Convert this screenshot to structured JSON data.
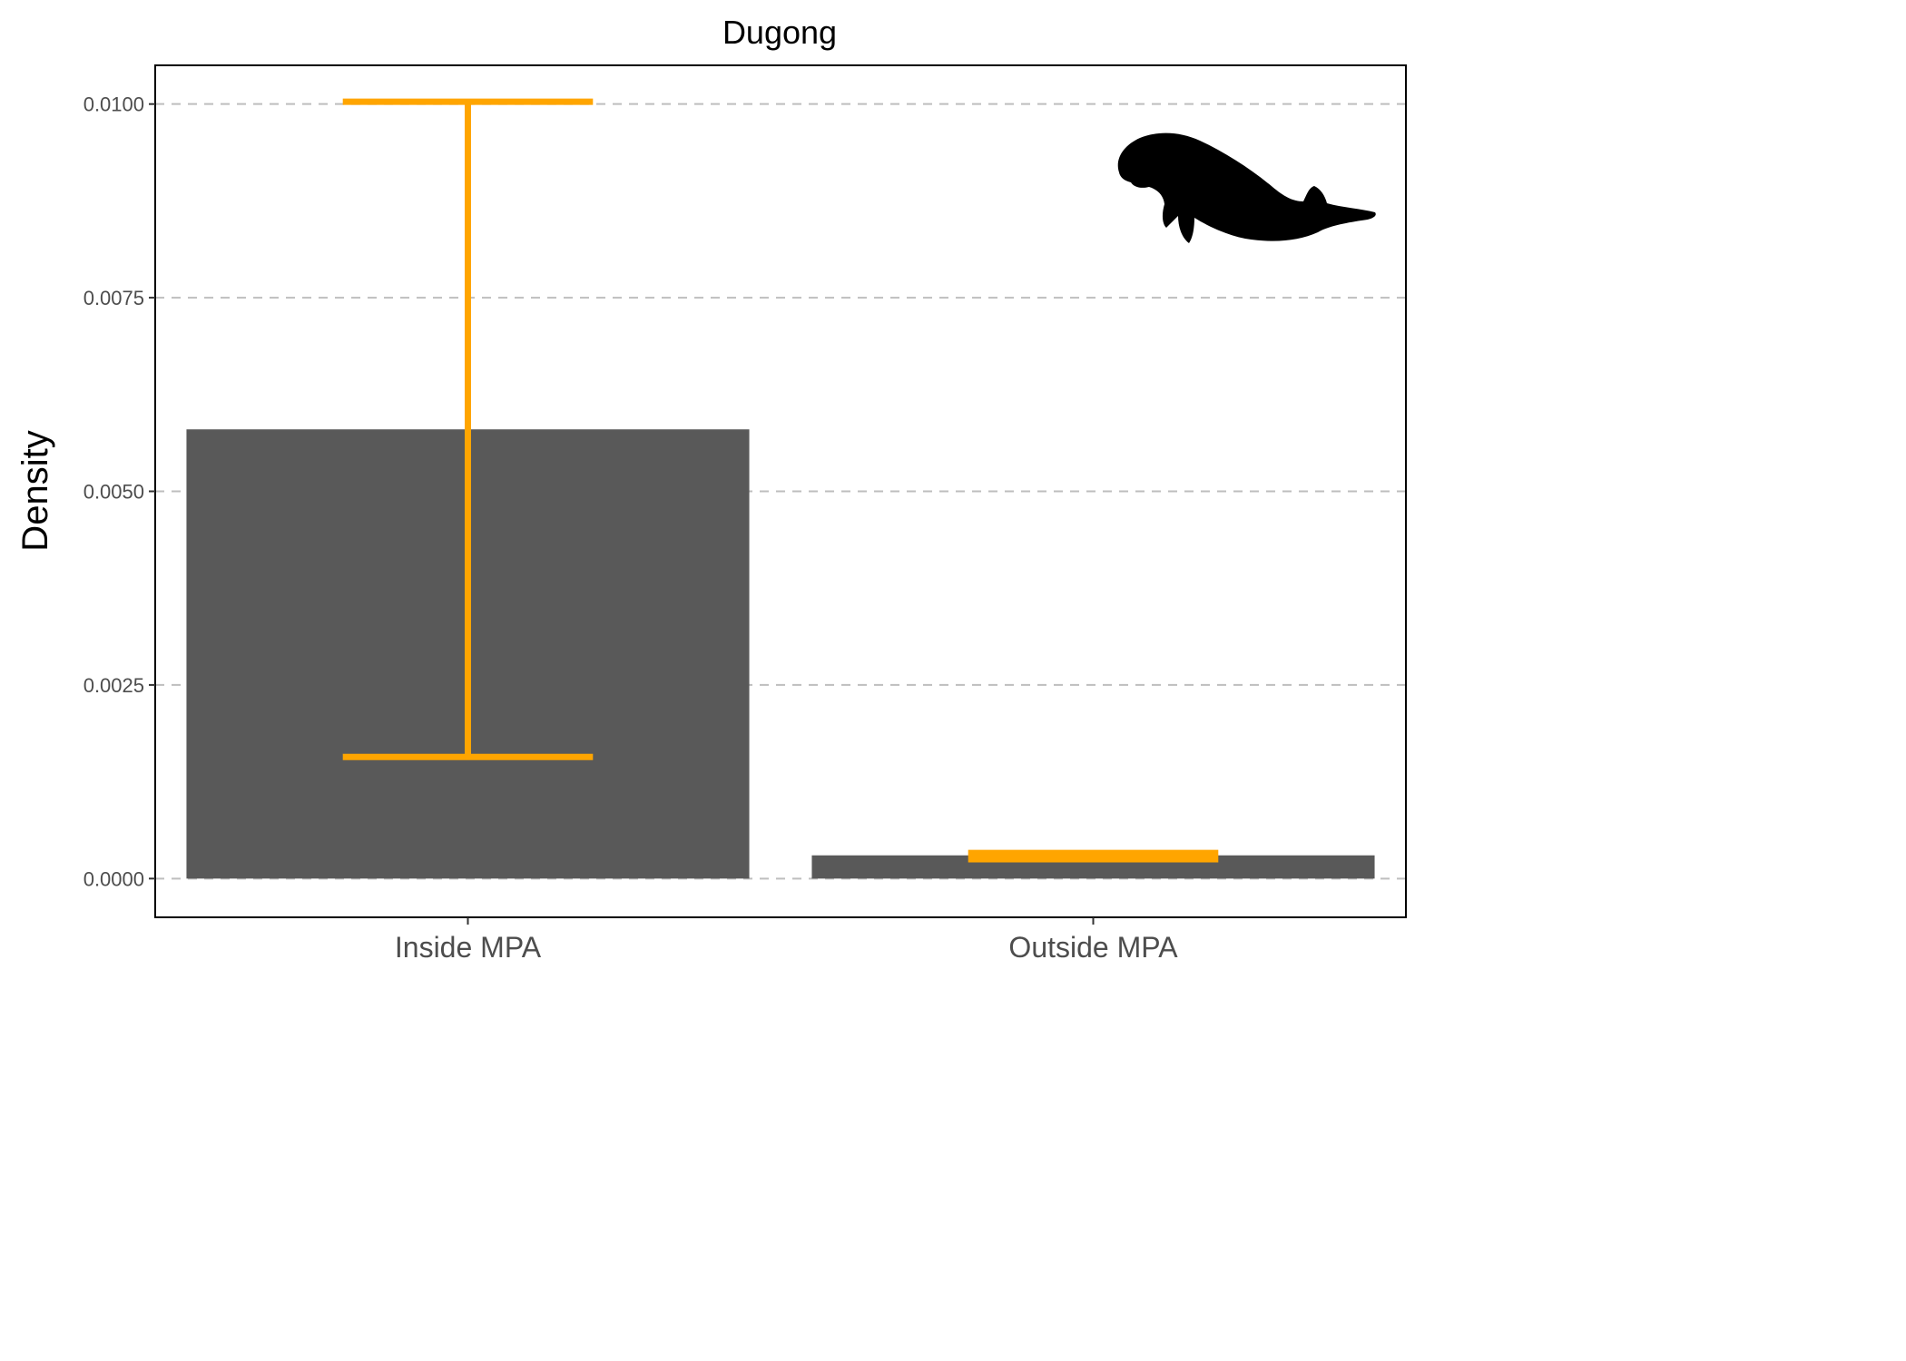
{
  "chart_data": {
    "type": "bar",
    "title": "Dugong",
    "xlabel": "",
    "ylabel": "Density",
    "categories": [
      "Inside MPA",
      "Outside MPA"
    ],
    "values": [
      0.0058,
      0.0003
    ],
    "error_bars": [
      {
        "lower": 0.00157,
        "upper": 0.01003
      },
      {
        "lower": 0.00025,
        "upper": 0.00033
      }
    ],
    "ylim": [
      -0.0005,
      0.0105
    ],
    "y_ticks": [
      "0.0000",
      "0.0025",
      "0.0050",
      "0.0075",
      "0.0100"
    ],
    "y_tick_values": [
      0,
      0.0025,
      0.005,
      0.0075,
      0.01
    ],
    "grid": "horizontal dashed",
    "legend": "none",
    "icon": "dugong-silhouette-icon",
    "colors": {
      "bar": "#595959",
      "error_bar": "#ffa500",
      "grid": "#bebebe",
      "tick_label": "#4d4d4d"
    }
  }
}
